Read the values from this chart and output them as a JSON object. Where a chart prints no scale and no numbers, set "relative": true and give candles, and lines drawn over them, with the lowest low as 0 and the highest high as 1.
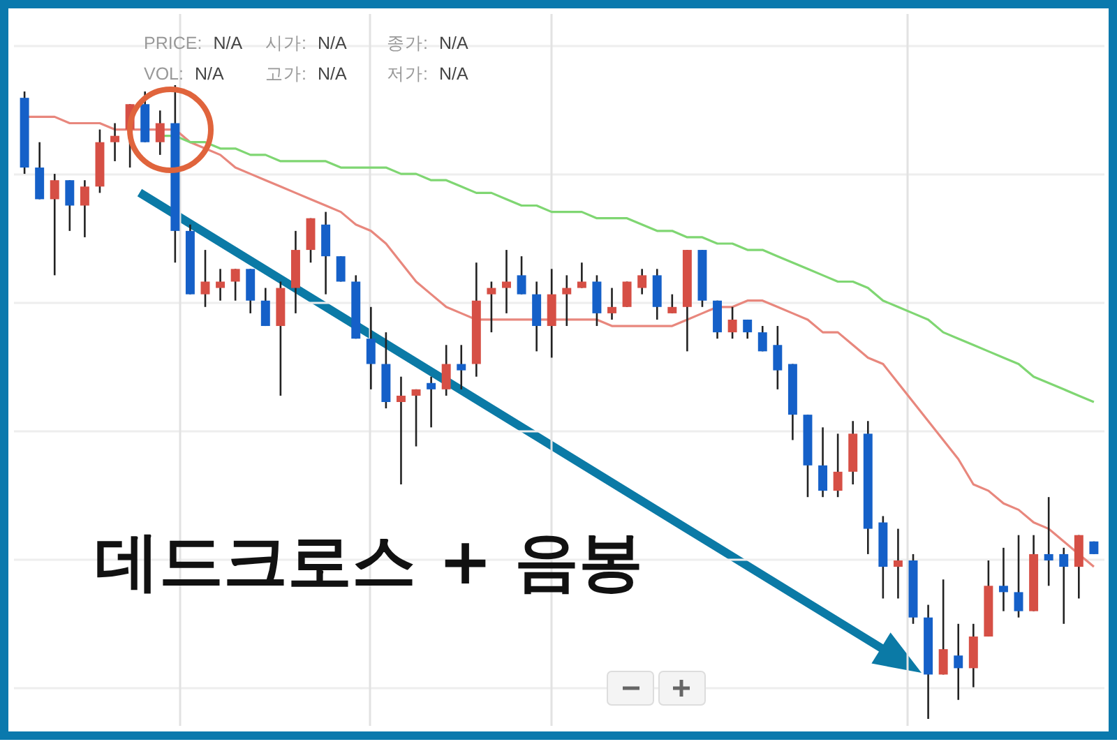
{
  "chart_data": {
    "type": "candlestick",
    "relative": true,
    "grid": true,
    "categories": [
      null,
      null,
      null,
      null,
      null,
      null,
      null,
      null,
      null,
      null,
      null,
      null,
      null,
      null,
      null,
      null,
      null,
      null,
      null,
      null,
      null,
      null,
      null,
      null,
      null,
      null,
      null,
      null,
      null,
      null,
      null,
      null,
      null,
      null,
      null,
      null,
      null,
      null,
      null,
      null,
      null,
      null,
      null,
      null,
      null,
      null,
      null,
      null,
      null,
      null,
      null,
      null,
      null,
      null,
      null,
      null,
      null,
      null,
      null,
      null,
      null,
      null,
      null,
      null,
      null,
      null,
      null,
      null,
      null,
      null,
      null,
      null
    ],
    "ohlc": [
      [
        0.98,
        0.99,
        0.86,
        0.87
      ],
      [
        0.87,
        0.91,
        0.82,
        0.82
      ],
      [
        0.82,
        0.86,
        0.7,
        0.85
      ],
      [
        0.85,
        0.85,
        0.77,
        0.81
      ],
      [
        0.81,
        0.85,
        0.76,
        0.84
      ],
      [
        0.84,
        0.93,
        0.83,
        0.91
      ],
      [
        0.91,
        0.94,
        0.88,
        0.92
      ],
      [
        0.93,
        0.97,
        0.87,
        0.97
      ],
      [
        0.97,
        0.99,
        0.91,
        0.91
      ],
      [
        0.91,
        0.96,
        0.89,
        0.94
      ],
      [
        0.94,
        1.0,
        0.72,
        0.77
      ],
      [
        0.77,
        0.78,
        0.67,
        0.67
      ],
      [
        0.67,
        0.74,
        0.65,
        0.69
      ],
      [
        0.68,
        0.71,
        0.66,
        0.69
      ],
      [
        0.69,
        0.71,
        0.66,
        0.71
      ],
      [
        0.71,
        0.71,
        0.64,
        0.66
      ],
      [
        0.66,
        0.68,
        0.62,
        0.62
      ],
      [
        0.62,
        0.69,
        0.51,
        0.68
      ],
      [
        0.68,
        0.77,
        0.64,
        0.74
      ],
      [
        0.74,
        0.79,
        0.72,
        0.79
      ],
      [
        0.78,
        0.8,
        0.67,
        0.73
      ],
      [
        0.73,
        0.73,
        0.69,
        0.69
      ],
      [
        0.69,
        0.7,
        0.6,
        0.6
      ],
      [
        0.6,
        0.65,
        0.52,
        0.56
      ],
      [
        0.56,
        0.61,
        0.49,
        0.5
      ],
      [
        0.5,
        0.54,
        0.37,
        0.51
      ],
      [
        0.51,
        0.52,
        0.43,
        0.52
      ],
      [
        0.53,
        0.54,
        0.46,
        0.52
      ],
      [
        0.52,
        0.59,
        0.51,
        0.56
      ],
      [
        0.56,
        0.59,
        0.52,
        0.55
      ],
      [
        0.56,
        0.72,
        0.54,
        0.66
      ],
      [
        0.67,
        0.69,
        0.61,
        0.68
      ],
      [
        0.68,
        0.74,
        0.64,
        0.69
      ],
      [
        0.7,
        0.73,
        0.67,
        0.67
      ],
      [
        0.67,
        0.69,
        0.58,
        0.62
      ],
      [
        0.62,
        0.71,
        0.57,
        0.67
      ],
      [
        0.67,
        0.7,
        0.62,
        0.68
      ],
      [
        0.68,
        0.72,
        0.68,
        0.69
      ],
      [
        0.69,
        0.7,
        0.62,
        0.64
      ],
      [
        0.64,
        0.68,
        0.63,
        0.65
      ],
      [
        0.65,
        0.69,
        0.65,
        0.69
      ],
      [
        0.68,
        0.71,
        0.67,
        0.7
      ],
      [
        0.7,
        0.71,
        0.63,
        0.65
      ],
      [
        0.64,
        0.67,
        0.64,
        0.65
      ],
      [
        0.65,
        0.74,
        0.58,
        0.74
      ],
      [
        0.74,
        0.74,
        0.65,
        0.66
      ],
      [
        0.66,
        0.66,
        0.6,
        0.61
      ],
      [
        0.61,
        0.65,
        0.6,
        0.63
      ],
      [
        0.63,
        0.63,
        0.6,
        0.61
      ],
      [
        0.61,
        0.62,
        0.58,
        0.58
      ],
      [
        0.59,
        0.62,
        0.52,
        0.55
      ],
      [
        0.56,
        0.56,
        0.44,
        0.48
      ],
      [
        0.48,
        0.48,
        0.35,
        0.4
      ],
      [
        0.4,
        0.46,
        0.35,
        0.36
      ],
      [
        0.36,
        0.45,
        0.35,
        0.39
      ],
      [
        0.39,
        0.47,
        0.37,
        0.45
      ],
      [
        0.45,
        0.47,
        0.26,
        0.3
      ],
      [
        0.31,
        0.32,
        0.19,
        0.24
      ],
      [
        0.24,
        0.3,
        0.19,
        0.25
      ],
      [
        0.25,
        0.26,
        0.15,
        0.16
      ],
      [
        0.16,
        0.18,
        0.0,
        0.07
      ],
      [
        0.07,
        0.22,
        0.07,
        0.11
      ],
      [
        0.1,
        0.15,
        0.03,
        0.08
      ],
      [
        0.08,
        0.15,
        0.05,
        0.13
      ],
      [
        0.13,
        0.25,
        0.13,
        0.21
      ],
      [
        0.21,
        0.27,
        0.17,
        0.2
      ],
      [
        0.2,
        0.29,
        0.16,
        0.17
      ],
      [
        0.17,
        0.29,
        0.17,
        0.26
      ],
      [
        0.26,
        0.35,
        0.21,
        0.25
      ],
      [
        0.26,
        0.27,
        0.15,
        0.24
      ],
      [
        0.24,
        0.29,
        0.19,
        0.29
      ],
      [
        0.28,
        0.28,
        0.26,
        0.26
      ]
    ],
    "series": [
      {
        "type": "line",
        "color": "#e8877d",
        "values": [
          0.95,
          0.95,
          0.95,
          0.94,
          0.94,
          0.94,
          0.93,
          0.93,
          0.93,
          0.93,
          0.93,
          0.91,
          0.9,
          0.89,
          0.87,
          0.86,
          0.85,
          0.84,
          0.83,
          0.82,
          0.81,
          0.8,
          0.78,
          0.77,
          0.75,
          0.72,
          0.69,
          0.67,
          0.65,
          0.64,
          0.63,
          0.63,
          0.63,
          0.63,
          0.63,
          0.63,
          0.63,
          0.63,
          0.63,
          0.62,
          0.62,
          0.62,
          0.62,
          0.62,
          0.63,
          0.64,
          0.65,
          0.65,
          0.66,
          0.66,
          0.65,
          0.64,
          0.63,
          0.61,
          0.61,
          0.59,
          0.57,
          0.56,
          0.53,
          0.5,
          0.47,
          0.44,
          0.41,
          0.37,
          0.36,
          0.34,
          0.33,
          0.31,
          0.3,
          0.28,
          0.26,
          0.24
        ]
      },
      {
        "type": "line",
        "color": "#7fd672",
        "values": [
          null,
          null,
          null,
          null,
          null,
          null,
          null,
          null,
          null,
          0.92,
          0.92,
          0.91,
          0.91,
          0.9,
          0.9,
          0.89,
          0.89,
          0.88,
          0.88,
          0.88,
          0.88,
          0.87,
          0.87,
          0.87,
          0.87,
          0.86,
          0.86,
          0.85,
          0.85,
          0.84,
          0.83,
          0.83,
          0.82,
          0.81,
          0.81,
          0.8,
          0.8,
          0.8,
          0.79,
          0.79,
          0.79,
          0.78,
          0.77,
          0.77,
          0.76,
          0.76,
          0.75,
          0.75,
          0.74,
          0.74,
          0.73,
          0.72,
          0.71,
          0.7,
          0.69,
          0.69,
          0.68,
          0.66,
          0.65,
          0.64,
          0.63,
          0.61,
          0.6,
          0.59,
          0.58,
          0.57,
          0.56,
          0.54,
          0.53,
          0.52,
          0.51,
          0.5
        ]
      }
    ],
    "annotations": [
      "PRICE: N/A",
      "시가: N/A",
      "종가: N/A",
      "VOL: N/A",
      "고가: N/A",
      "저가: N/A",
      "데드크로스 + 음봉"
    ]
  }
}
